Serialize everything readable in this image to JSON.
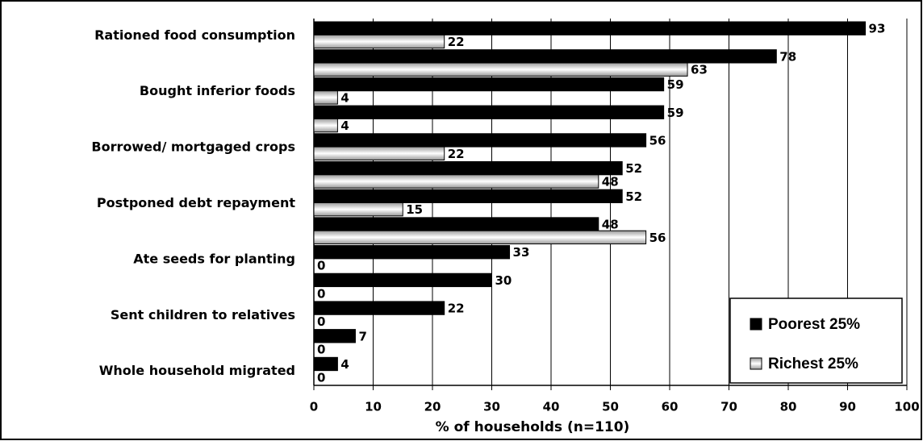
{
  "chart_data": {
    "type": "bar",
    "orientation": "horizontal",
    "x_label": "% of households (n=110)",
    "categories": [
      "Rationed food consumption",
      null,
      "Bought inferior foods",
      null,
      "Borrowed/ mortgaged crops",
      null,
      "Postponed debt repayment",
      null,
      "Ate seeds for planting",
      null,
      "Sent children to relatives",
      null,
      "Whole household migrated"
    ],
    "series": [
      {
        "name": "Poorest 25%",
        "color": "#000000",
        "values": [
          93,
          78,
          59,
          59,
          56,
          52,
          52,
          48,
          33,
          30,
          22,
          7,
          4
        ]
      },
      {
        "name": "Richest 25%",
        "color": "#999999",
        "values": [
          22,
          63,
          4,
          4,
          22,
          48,
          15,
          56,
          0,
          0,
          0,
          0,
          0
        ]
      }
    ],
    "xlim": [
      0,
      100
    ],
    "xticks": [
      0,
      10,
      20,
      30,
      40,
      50,
      60,
      70,
      80,
      90,
      100
    ],
    "grid": true,
    "legend": "lower right"
  }
}
